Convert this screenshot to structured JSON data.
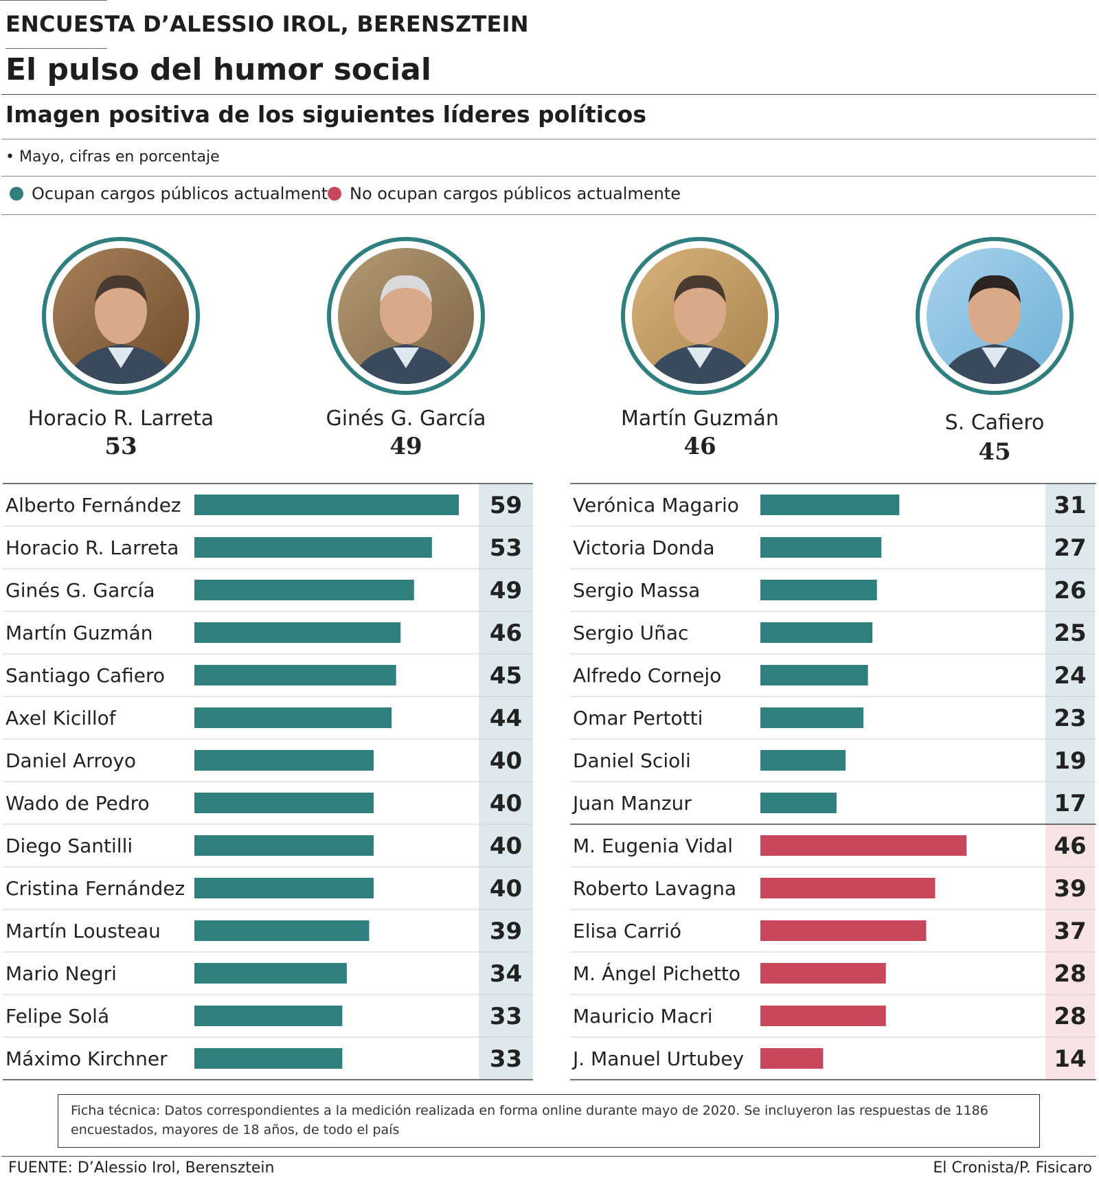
{
  "header": {
    "kicker": "ENCUESTA D’ALESSIO IROL, BERENSZTEIN",
    "title": "El pulso del humor social",
    "subtitle": "Imagen positiva de los siguientes líderes políticos",
    "note": "• Mayo, cifras en porcentaje"
  },
  "legend": {
    "current": "Ocupan cargos públicos actualmente",
    "former": "No ocupan cargos públicos actualmente"
  },
  "colors": {
    "current": "#2f7f7f",
    "former": "#c8465a",
    "current_value_bg": "#dde9ec",
    "former_value_bg": "#f7e2e4"
  },
  "featured": [
    {
      "name": "Horacio R. Larreta",
      "value": "53",
      "icon": "portrait-photo"
    },
    {
      "name": "Ginés G. García",
      "value": "49",
      "icon": "portrait-photo"
    },
    {
      "name": "Martín Guzmán",
      "value": "46",
      "icon": "portrait-photo"
    },
    {
      "name": "S. Cafiero",
      "value": "45",
      "icon": "portrait-photo"
    }
  ],
  "chart_data": {
    "type": "bar",
    "orientation": "horizontal",
    "xlim": [
      0,
      64
    ],
    "groups": [
      {
        "categories": [
          "Alberto Fernández",
          "Horacio R. Larreta",
          "Ginés G. García",
          "Martín Guzmán",
          "Santiago Cafiero",
          "Axel Kicillof",
          "Daniel Arroyo",
          "Wado de Pedro",
          "Diego Santilli",
          "Cristina Fernández",
          "Martín Lousteau",
          "Mario Negri",
          "Felipe Solá",
          "Máximo Kirchner"
        ],
        "values": [
          59,
          53,
          49,
          46,
          45,
          44,
          40,
          40,
          40,
          40,
          39,
          34,
          33,
          33
        ],
        "status": [
          "current",
          "current",
          "current",
          "current",
          "current",
          "current",
          "current",
          "current",
          "current",
          "current",
          "current",
          "current",
          "current",
          "current"
        ]
      },
      {
        "categories": [
          "Verónica Magario",
          "Victoria Donda",
          "Sergio Massa",
          "Sergio Uñac",
          "Alfredo Cornejo",
          "Omar Pertotti",
          "Daniel Scioli",
          "Juan Manzur",
          "M. Eugenia Vidal",
          "Roberto Lavagna",
          "Elisa Carrió",
          "M. Ángel Pichetto",
          "Mauricio Macri",
          "J. Manuel Urtubey"
        ],
        "values": [
          31,
          27,
          26,
          25,
          24,
          23,
          19,
          17,
          46,
          39,
          37,
          28,
          28,
          14
        ],
        "status": [
          "current",
          "current",
          "current",
          "current",
          "current",
          "current",
          "current",
          "current",
          "former",
          "former",
          "former",
          "former",
          "former",
          "former"
        ]
      }
    ]
  },
  "footer": {
    "ficha": "Ficha técnica: Datos correspondientes a la medición realizada en forma online durante mayo de 2020. Se incluyeron las respuestas de 1186 encuestados, mayores de 18 años, de todo el país",
    "source": "FUENTE: D’Alessio Irol, Berensztein",
    "credit": "El Cronista/P. Fisicaro"
  }
}
